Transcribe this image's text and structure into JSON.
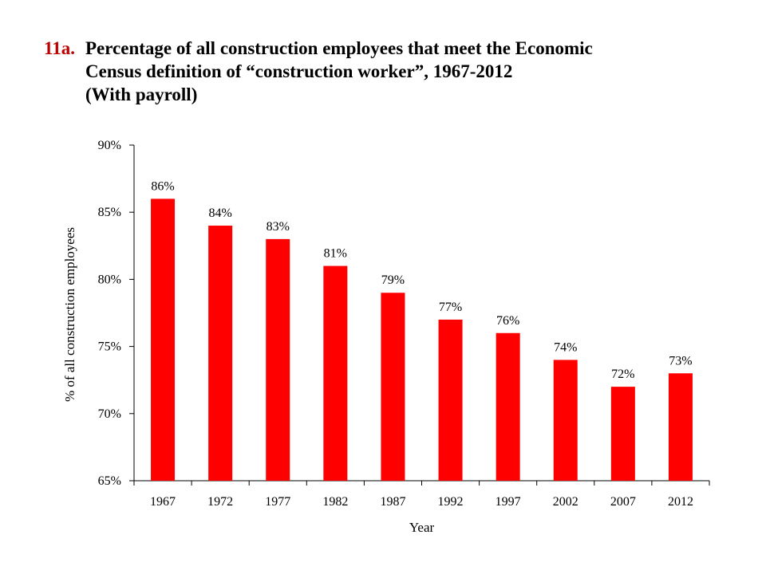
{
  "title": {
    "number": "11a.",
    "text": "Percentage of all construction employees that meet the Economic\nCensus definition of “construction worker”, 1967-2012\n(With payroll)"
  },
  "colors": {
    "bar": "#ff0000",
    "title_number": "#c00000",
    "axis": "#000000"
  },
  "chart_data": {
    "type": "bar",
    "title": "Percentage of all construction employees that meet the Economic Census definition of “construction worker”, 1967-2012 (With payroll)",
    "xlabel": "Year",
    "ylabel": "% of all construction employees",
    "categories": [
      "1967",
      "1972",
      "1977",
      "1982",
      "1987",
      "1992",
      "1997",
      "2002",
      "2007",
      "2012"
    ],
    "values": [
      86,
      84,
      83,
      81,
      79,
      77,
      76,
      74,
      72,
      73
    ],
    "data_labels": [
      "86%",
      "84%",
      "83%",
      "81%",
      "79%",
      "77%",
      "76%",
      "74%",
      "72%",
      "73%"
    ],
    "ylim": [
      65,
      90
    ],
    "yticks": [
      65,
      70,
      75,
      80,
      85,
      90
    ],
    "ytick_labels": [
      "65%",
      "70%",
      "75%",
      "80%",
      "85%",
      "90%"
    ],
    "grid": false,
    "legend": "none"
  }
}
